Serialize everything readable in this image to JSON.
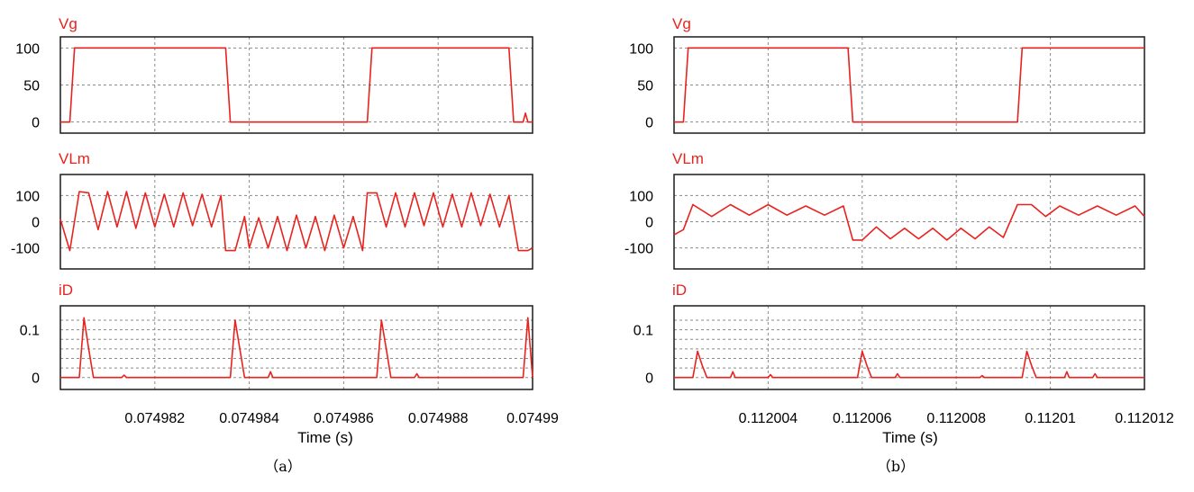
{
  "chart_data": [
    {
      "type": "line",
      "caption": "（a）",
      "xlabel": "Time (s)",
      "xlim": [
        0.07498,
        0.07499
      ],
      "xticks": [
        {
          "value": 0.074982,
          "label": "0.074982"
        },
        {
          "value": 0.074984,
          "label": "0.074984"
        },
        {
          "value": 0.074986,
          "label": "0.074986"
        },
        {
          "value": 0.074988,
          "label": "0.074988"
        },
        {
          "value": 0.07499,
          "label": "0.07499"
        }
      ],
      "grid": true,
      "color": "#e8231f",
      "panels": [
        {
          "name": "Vg",
          "ylim": [
            -15,
            115
          ],
          "yticks": [
            {
              "value": 100,
              "label": "100"
            },
            {
              "value": 50,
              "label": "50"
            },
            {
              "value": 0,
              "label": "0"
            }
          ],
          "grid_y": [
            100,
            50,
            0
          ],
          "x": [
            0.07498,
            0.0749802,
            0.07498025,
            0.0749803,
            0.0749835,
            0.07498355,
            0.0749836,
            0.0749865,
            0.07498655,
            0.0749866,
            0.0749895,
            0.07498955,
            0.0749896,
            0.0749898,
            0.07498985,
            0.0749899,
            0.07499
          ],
          "y": [
            0,
            0,
            50,
            100,
            100,
            50,
            0,
            0,
            50,
            100,
            100,
            50,
            0,
            0,
            12,
            0,
            0
          ]
        },
        {
          "name": "VLm",
          "ylim": [
            -180,
            180
          ],
          "yticks": [
            {
              "value": 100,
              "label": "100"
            },
            {
              "value": 0,
              "label": "0"
            },
            {
              "value": -100,
              "label": "-100"
            }
          ],
          "grid_y": [
            100,
            0,
            -100
          ],
          "x": [
            0.07498,
            0.0749801,
            0.0749802,
            0.0749804,
            0.0749806,
            0.0749808,
            0.074981,
            0.0749812,
            0.0749814,
            0.0749816,
            0.0749818,
            0.074982,
            0.0749822,
            0.0749824,
            0.0749826,
            0.0749828,
            0.074983,
            0.0749832,
            0.0749834,
            0.0749835,
            0.0749837,
            0.0749839,
            0.074984,
            0.0749842,
            0.0749844,
            0.0749846,
            0.0749848,
            0.074985,
            0.0749852,
            0.0749854,
            0.0749856,
            0.0749858,
            0.074986,
            0.0749862,
            0.0749864,
            0.0749865,
            0.0749867,
            0.0749869,
            0.0749871,
            0.0749873,
            0.0749875,
            0.0749877,
            0.0749879,
            0.0749881,
            0.0749883,
            0.0749885,
            0.0749887,
            0.0749889,
            0.0749891,
            0.0749893,
            0.0749895,
            0.0749897,
            0.0749899,
            0.07499
          ],
          "y": [
            10,
            -50,
            -110,
            115,
            110,
            -30,
            115,
            -20,
            115,
            -25,
            110,
            -20,
            105,
            -20,
            110,
            -15,
            105,
            -20,
            100,
            -110,
            -110,
            20,
            -100,
            15,
            -100,
            20,
            -110,
            25,
            -100,
            20,
            -110,
            25,
            -100,
            20,
            -110,
            110,
            110,
            -20,
            110,
            -20,
            110,
            -15,
            110,
            -20,
            105,
            -20,
            110,
            -15,
            105,
            -20,
            100,
            -110,
            -110,
            -100
          ]
        },
        {
          "name": "iD",
          "ylim": [
            -0.025,
            0.15
          ],
          "yticks": [
            {
              "value": 0.1,
              "label": "0.1"
            },
            {
              "value": 0,
              "label": "0"
            }
          ],
          "grid_y": [
            0.12,
            0.1,
            0.08,
            0.06,
            0.04,
            0.02,
            0
          ],
          "x": [
            0.07498,
            0.0749804,
            0.0749805,
            0.0749806,
            0.0749807,
            0.0749813,
            0.07498135,
            0.0749814,
            0.0749836,
            0.0749837,
            0.0749838,
            0.0749839,
            0.0749844,
            0.07498445,
            0.0749845,
            0.0749867,
            0.0749868,
            0.0749869,
            0.074987,
            0.0749875,
            0.07498755,
            0.0749876,
            0.0749898,
            0.0749899,
            0.07499
          ],
          "y": [
            0,
            0,
            0.125,
            0.06,
            0,
            0,
            0.005,
            0,
            0,
            0.12,
            0.06,
            0,
            0,
            0.012,
            0,
            0,
            0.12,
            0.06,
            0,
            0,
            0.008,
            0,
            0,
            0.125,
            0
          ]
        }
      ]
    },
    {
      "type": "line",
      "caption": "（b）",
      "xlabel": "Time (s)",
      "xlim": [
        0.112002,
        0.112012
      ],
      "xticks": [
        {
          "value": 0.112004,
          "label": "0.112004"
        },
        {
          "value": 0.112006,
          "label": "0.112006"
        },
        {
          "value": 0.112008,
          "label": "0.112008"
        },
        {
          "value": 0.11201,
          "label": "0.11201"
        },
        {
          "value": 0.112012,
          "label": "0.112012"
        }
      ],
      "grid": true,
      "color": "#e8231f",
      "panels": [
        {
          "name": "Vg",
          "ylim": [
            -15,
            115
          ],
          "yticks": [
            {
              "value": 100,
              "label": "100"
            },
            {
              "value": 50,
              "label": "50"
            },
            {
              "value": 0,
              "label": "0"
            }
          ],
          "grid_y": [
            100,
            50,
            0
          ],
          "x": [
            0.112002,
            0.1120022,
            0.11200225,
            0.1120023,
            0.1120057,
            0.11200575,
            0.1120058,
            0.1120093,
            0.11200935,
            0.1120094,
            0.112012
          ],
          "y": [
            0,
            0,
            50,
            100,
            100,
            50,
            0,
            0,
            50,
            100,
            100
          ]
        },
        {
          "name": "VLm",
          "ylim": [
            -180,
            180
          ],
          "yticks": [
            {
              "value": 100,
              "label": "100"
            },
            {
              "value": 0,
              "label": "0"
            },
            {
              "value": -100,
              "label": "-100"
            }
          ],
          "grid_y": [
            100,
            0,
            -100
          ],
          "x": [
            0.112002,
            0.1120022,
            0.1120024,
            0.1120028,
            0.1120032,
            0.1120036,
            0.112004,
            0.1120044,
            0.1120048,
            0.1120052,
            0.1120056,
            0.1120058,
            0.112006,
            0.1120063,
            0.1120066,
            0.1120069,
            0.1120072,
            0.1120075,
            0.1120078,
            0.1120081,
            0.1120084,
            0.1120087,
            0.112009,
            0.1120093,
            0.1120096,
            0.1120099,
            0.1120102,
            0.1120106,
            0.112011,
            0.1120114,
            0.1120118,
            0.112012
          ],
          "y": [
            -50,
            -30,
            65,
            20,
            65,
            25,
            65,
            25,
            60,
            25,
            60,
            -70,
            -70,
            -20,
            -65,
            -25,
            -65,
            -25,
            -70,
            -25,
            -65,
            -20,
            -60,
            65,
            65,
            20,
            60,
            25,
            60,
            25,
            60,
            20
          ]
        },
        {
          "name": "iD",
          "ylim": [
            -0.025,
            0.15
          ],
          "yticks": [
            {
              "value": 0.1,
              "label": "0.1"
            },
            {
              "value": 0,
              "label": "0"
            }
          ],
          "grid_y": [
            0.12,
            0.1,
            0.08,
            0.06,
            0.04,
            0.02,
            0
          ],
          "x": [
            0.112002,
            0.1120024,
            0.1120025,
            0.1120026,
            0.1120027,
            0.1120032,
            0.11200325,
            0.1120033,
            0.112004,
            0.11200405,
            0.1120041,
            0.1120059,
            0.112006,
            0.1120061,
            0.1120062,
            0.1120067,
            0.11200675,
            0.1120068,
            0.1120085,
            0.11200855,
            0.1120086,
            0.1120094,
            0.1120095,
            0.1120096,
            0.1120097,
            0.1120103,
            0.11201035,
            0.1120104,
            0.1120109,
            0.11201095,
            0.112011,
            0.112012
          ],
          "y": [
            0,
            0,
            0.055,
            0.025,
            0,
            0,
            0.012,
            0,
            0,
            0.006,
            0,
            0,
            0.055,
            0.025,
            0,
            0,
            0.008,
            0,
            0,
            0.004,
            0,
            0,
            0.055,
            0.025,
            0,
            0,
            0.012,
            0,
            0,
            0.008,
            0,
            0
          ]
        }
      ]
    }
  ]
}
